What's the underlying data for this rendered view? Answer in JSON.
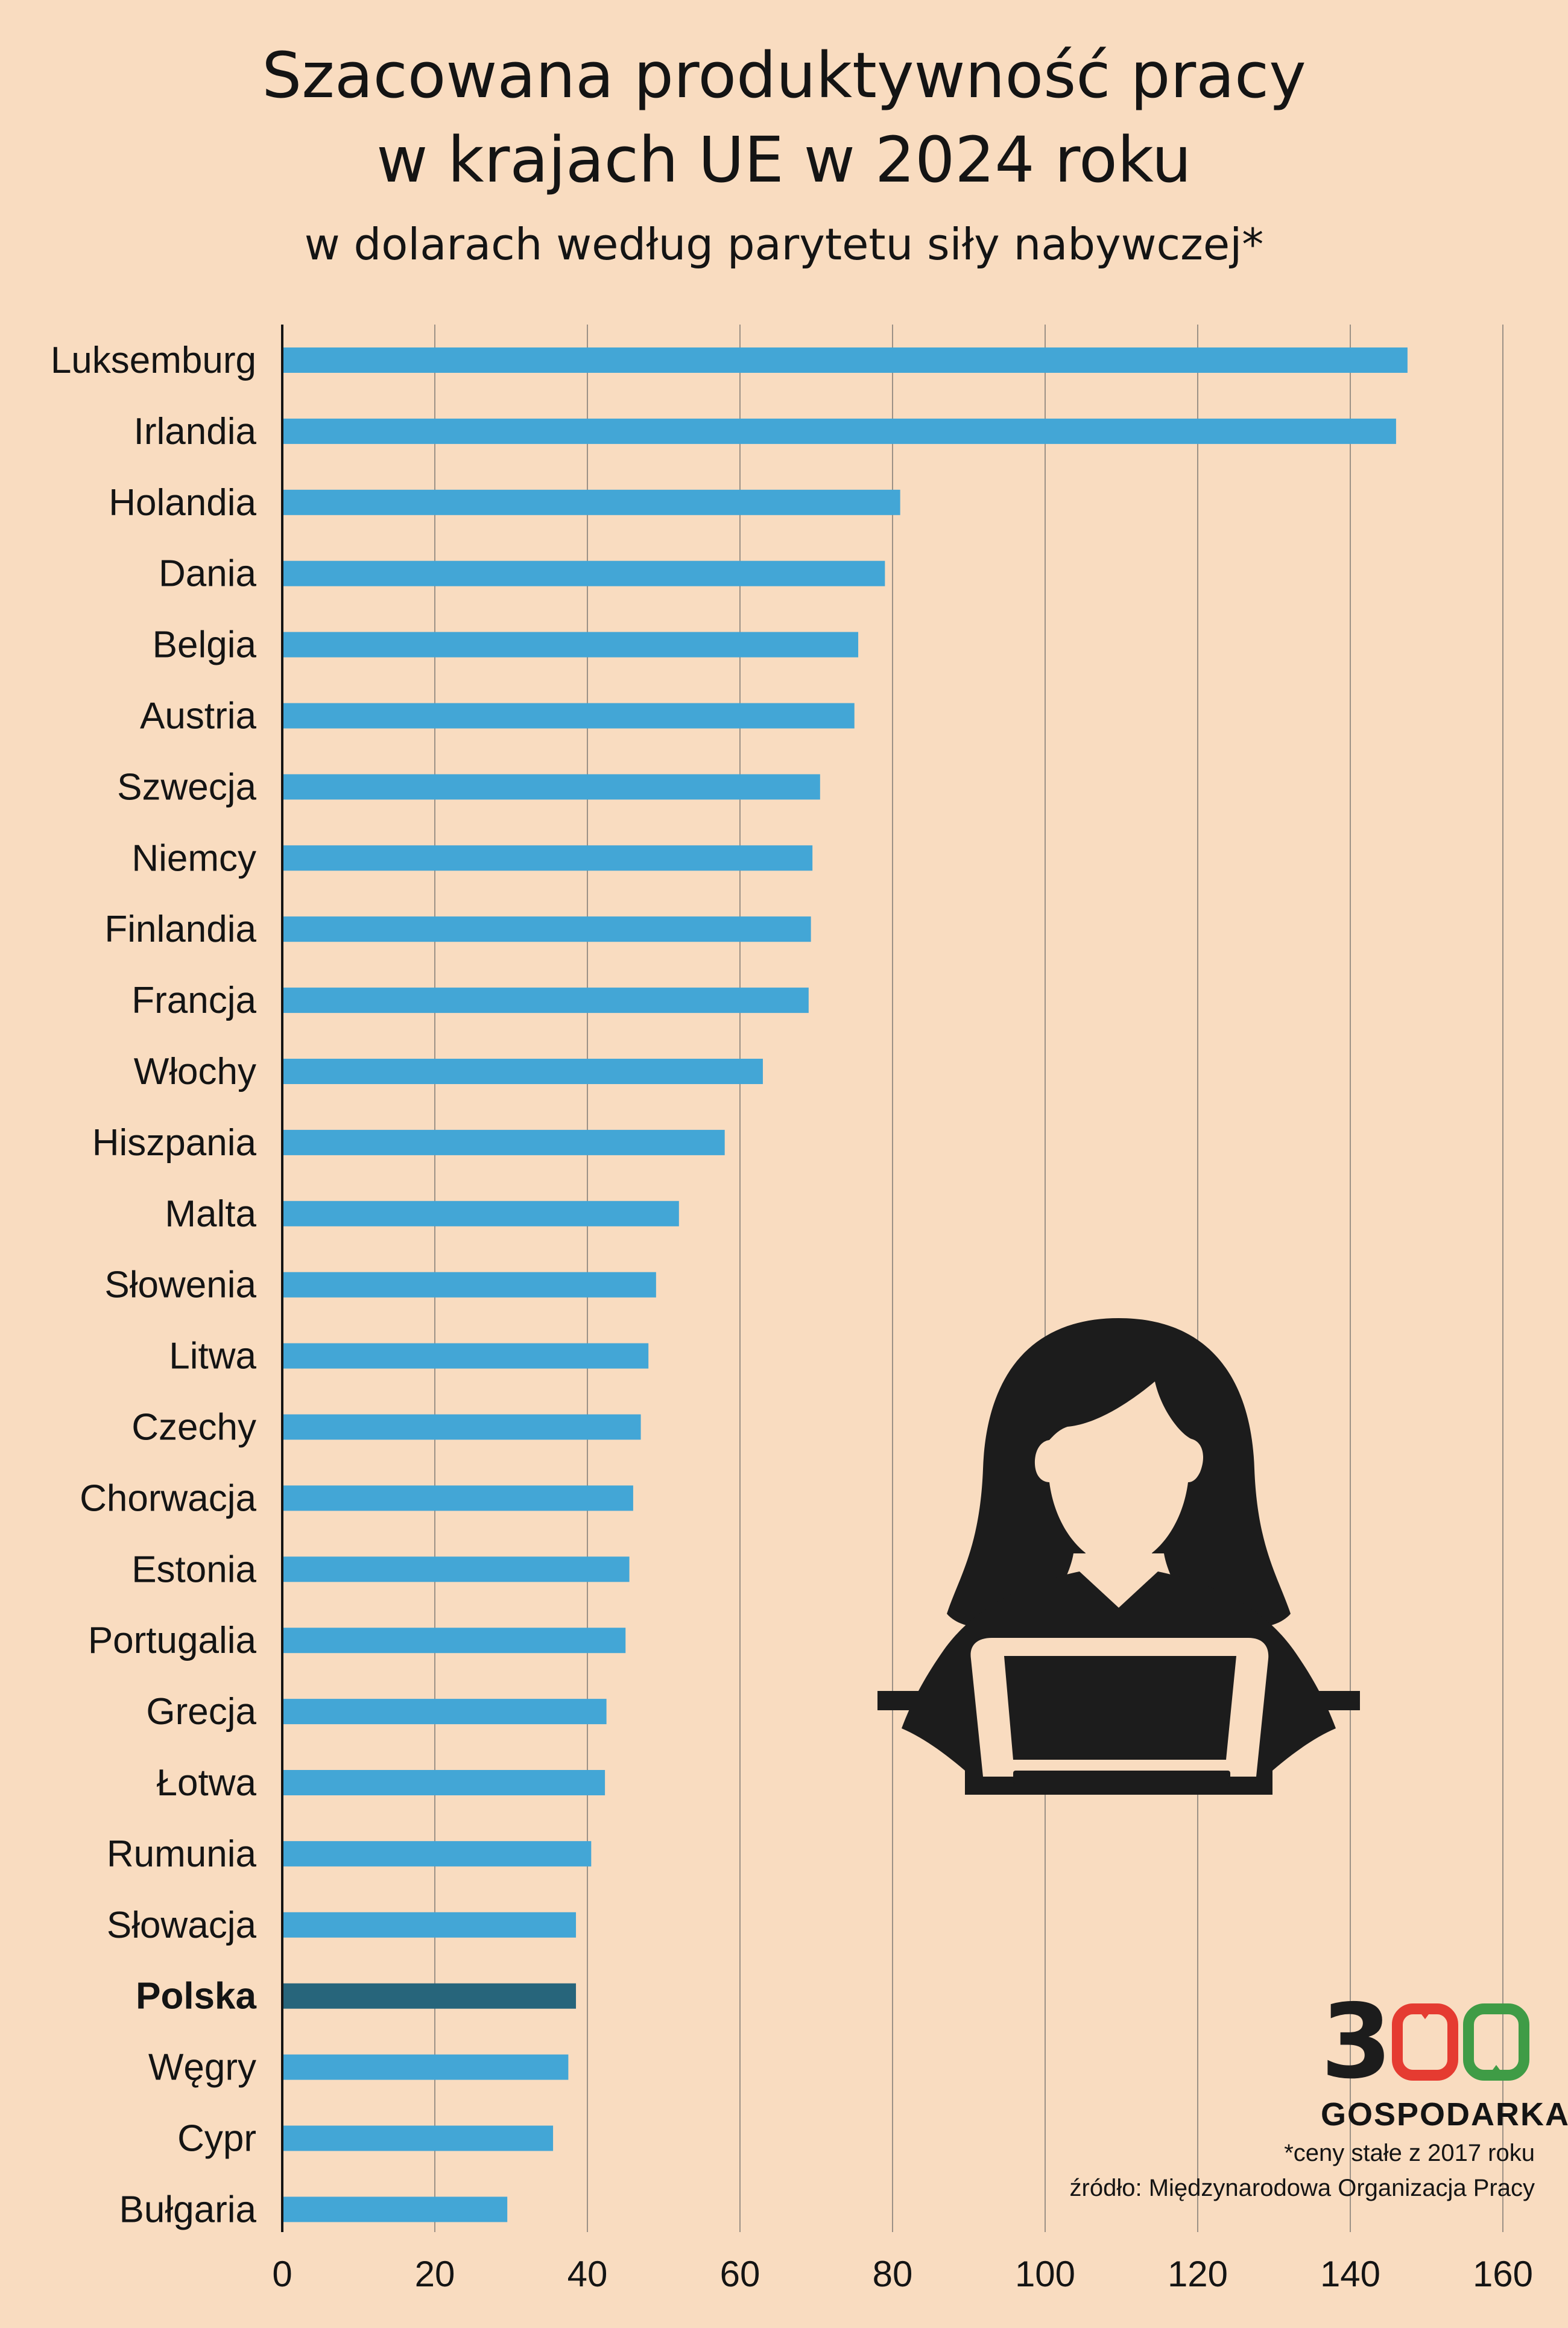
{
  "header": {
    "title_line1": "Szacowana produktywność pracy",
    "title_line2": "w krajach UE w 2024 roku",
    "subtitle": "w dolarach według parytetu siły nabywczej*"
  },
  "colors": {
    "background": "#f9dcc0",
    "bar": "#43a6d6",
    "bar_highlight": "#27657b",
    "gridline": "#9c9186",
    "axis": "#141414",
    "logo_red": "#e53b31",
    "logo_green": "#3f9c46"
  },
  "chart_data": {
    "type": "bar",
    "orientation": "horizontal",
    "title": "Szacowana produktywność pracy w krajach UE w 2024 roku",
    "subtitle": "w dolarach według parytetu siły nabywczej*",
    "categories": [
      "Luksemburg",
      "Irlandia",
      "Holandia",
      "Dania",
      "Belgia",
      "Austria",
      "Szwecja",
      "Niemcy",
      "Finlandia",
      "Francja",
      "Włochy",
      "Hiszpania",
      "Malta",
      "Słowenia",
      "Litwa",
      "Czechy",
      "Chorwacja",
      "Estonia",
      "Portugalia",
      "Grecja",
      "Łotwa",
      "Rumunia",
      "Słowacja",
      "Polska",
      "Węgry",
      "Cypr",
      "Bułgaria"
    ],
    "values": [
      147.5,
      146,
      81,
      79,
      75.5,
      75,
      70.5,
      69.5,
      69.3,
      69,
      63,
      58,
      52,
      49,
      48,
      47,
      46,
      45.5,
      45,
      42.5,
      42.3,
      40.5,
      38.5,
      38.5,
      37.5,
      35.5,
      29.5
    ],
    "highlight": "Polska",
    "xlim": [
      0,
      160
    ],
    "xticks": [
      0,
      20,
      40,
      60,
      80,
      100,
      120,
      140,
      160
    ],
    "grid": true,
    "xlabel": "",
    "ylabel": ""
  },
  "illustration": {
    "icon": "woman-at-laptop-icon"
  },
  "logo": {
    "digit": "3",
    "text": "GOSPODARKA"
  },
  "footnote": {
    "line1": "*ceny stałe z 2017 roku",
    "line2": "źródło: Międzynarodowa Organizacja Pracy"
  }
}
